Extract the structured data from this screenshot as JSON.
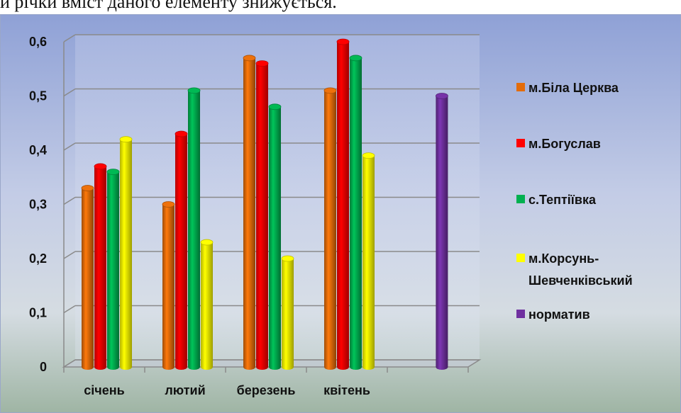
{
  "header_text": "и річки вміст даного елементу знижується.",
  "chart_data": {
    "type": "bar",
    "categories": [
      "січень",
      "лютий",
      "березень",
      "квітень",
      ""
    ],
    "ylim": [
      0,
      0.6
    ],
    "yticks": [
      "0",
      "0,1",
      "0,2",
      "0,3",
      "0,4",
      "0,5",
      "0,6"
    ],
    "grid": true,
    "legend_position": "right",
    "series": [
      {
        "name": "м.Біла Церква",
        "color": "#e36c0a",
        "values": [
          0.33,
          0.3,
          0.57,
          0.51,
          null
        ]
      },
      {
        "name": "м.Богуслав",
        "color": "#ff0000",
        "values": [
          0.37,
          0.43,
          0.56,
          0.6,
          null
        ]
      },
      {
        "name": "с.Тептіївка",
        "color": "#00b050",
        "values": [
          0.36,
          0.51,
          0.48,
          0.57,
          null
        ]
      },
      {
        "name": "м.Корсунь-Шевченківський",
        "legend_lines": [
          "м.Корсунь-",
          "Шевченківський"
        ],
        "color": "#ffff00",
        "values": [
          0.42,
          0.23,
          0.2,
          0.39,
          null
        ]
      },
      {
        "name": "норматив",
        "color": "#7030a0",
        "values": [
          null,
          null,
          null,
          null,
          0.5
        ]
      }
    ]
  }
}
